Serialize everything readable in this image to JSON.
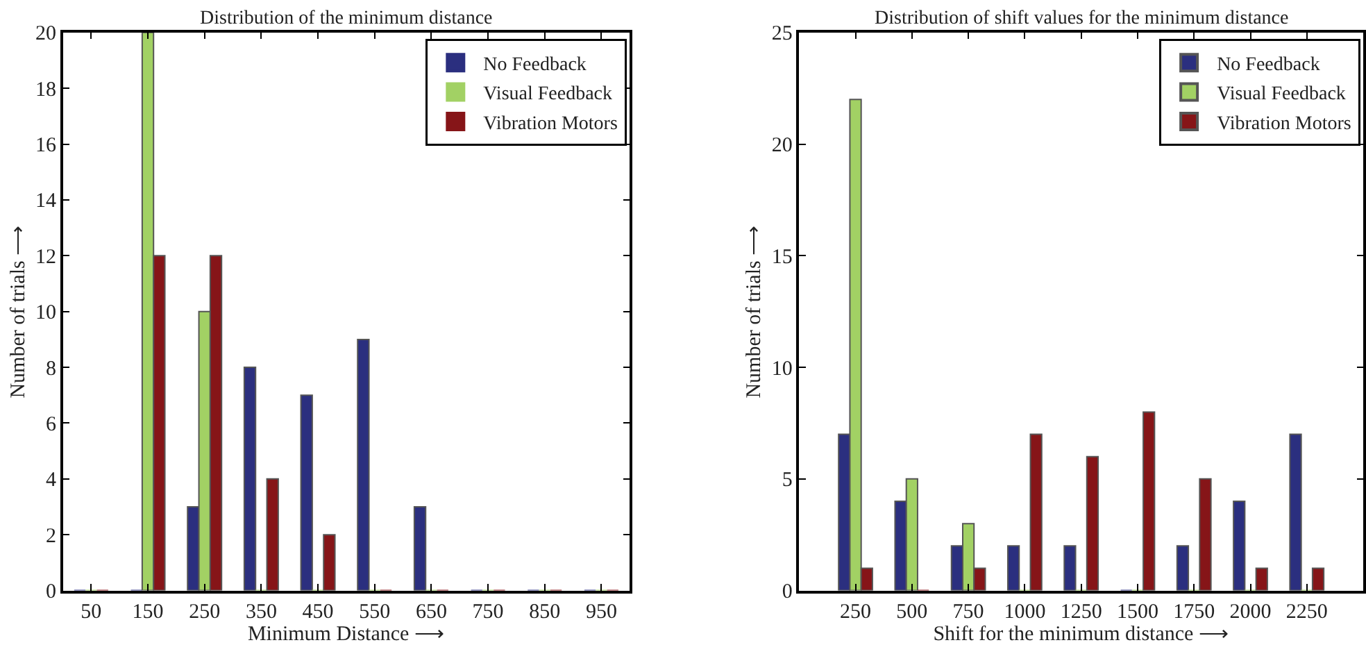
{
  "chart_data": [
    {
      "type": "bar",
      "title": "Distribution of the minimum distance",
      "xlabel": "Minimum Distance ⟶",
      "ylabel": "Number of trials ⟶",
      "x": [
        50,
        150,
        250,
        350,
        450,
        550,
        650,
        750,
        850,
        950
      ],
      "xlim": [
        0,
        1000
      ],
      "xticks": [
        50,
        150,
        250,
        350,
        450,
        550,
        650,
        750,
        850,
        950
      ],
      "ylim": [
        0,
        20
      ],
      "yticks": [
        0,
        2,
        4,
        6,
        8,
        10,
        12,
        14,
        16,
        18,
        20
      ],
      "legend": "top right",
      "series": [
        {
          "name": "No Feedback",
          "color": "#2b2f7f",
          "values": [
            0,
            0,
            3,
            8,
            7,
            9,
            3,
            0,
            0,
            0
          ]
        },
        {
          "name": "Visual Feedback",
          "color": "#a2d164",
          "values": [
            0,
            20,
            10,
            0,
            0,
            0,
            0,
            0,
            0,
            0
          ]
        },
        {
          "name": "Vibration Motors",
          "color": "#861518",
          "values": [
            0,
            12,
            12,
            4,
            2,
            0,
            0,
            0,
            0,
            0
          ]
        }
      ]
    },
    {
      "type": "bar",
      "title": "Distribution of shift values for the minimum distance",
      "xlabel": "Shift for the minimum distance ⟶",
      "ylabel": "Number of trials ⟶",
      "x": [
        250,
        500,
        750,
        1000,
        1250,
        1500,
        1750,
        2000,
        2250
      ],
      "xlim": [
        0,
        2500
      ],
      "xticks": [
        250,
        500,
        750,
        1000,
        1250,
        1500,
        1750,
        2000,
        2250
      ],
      "ylim": [
        0,
        25
      ],
      "yticks": [
        0,
        5,
        10,
        15,
        20,
        25
      ],
      "legend": "top right",
      "series": [
        {
          "name": "No Feedback",
          "color": "#2b2f7f",
          "values": [
            7,
            4,
            2,
            2,
            2,
            0,
            2,
            4,
            7
          ]
        },
        {
          "name": "Visual Feedback",
          "color": "#a2d164",
          "values": [
            22,
            5,
            3,
            0,
            0,
            0,
            0,
            0,
            0
          ]
        },
        {
          "name": "Vibration Motors",
          "color": "#861518",
          "values": [
            1,
            0,
            1,
            7,
            6,
            8,
            5,
            1,
            1
          ]
        }
      ]
    }
  ]
}
